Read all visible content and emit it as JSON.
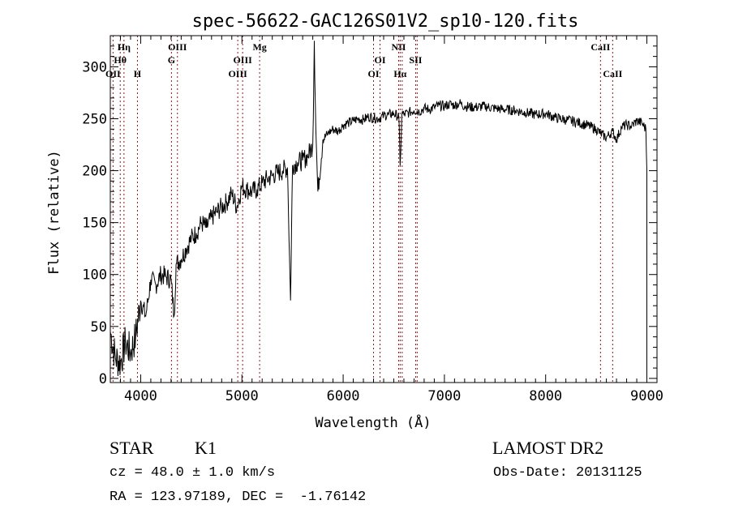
{
  "chart_data": {
    "type": "line",
    "title": "spec-56622-GAC126S01V2_sp10-120.fits",
    "xlabel": "Wavelength (Å)",
    "ylabel": "Flux (relative)",
    "xlim": [
      3700,
      9100
    ],
    "ylim": [
      -4,
      330
    ],
    "xticks": [
      4000,
      5000,
      6000,
      7000,
      8000,
      9000
    ],
    "yticks": [
      0,
      50,
      100,
      150,
      200,
      250,
      300
    ],
    "grid": false,
    "line_color": "#000000",
    "marker_color": "#8b1a1a",
    "line_markers": [
      {
        "label": "OII",
        "x": 3727,
        "row": 3
      },
      {
        "label": "Hθ",
        "x": 3798,
        "row": 2
      },
      {
        "label": "Hη",
        "x": 3835,
        "row": 1
      },
      {
        "label": "H",
        "x": 3968,
        "row": 3
      },
      {
        "label": "G",
        "x": 4304,
        "row": 2
      },
      {
        "label": "OIII",
        "x": 4363,
        "row": 1
      },
      {
        "label": "OIII",
        "x": 4959,
        "row": 3
      },
      {
        "label": "OIII",
        "x": 5007,
        "row": 2
      },
      {
        "label": "Mg",
        "x": 5175,
        "row": 1
      },
      {
        "label": "OI",
        "x": 6300,
        "row": 3
      },
      {
        "label": "OI",
        "x": 6364,
        "row": 2
      },
      {
        "label": "NII",
        "x": 6548,
        "row": 1
      },
      {
        "label": "Hα",
        "x": 6563,
        "row": 3
      },
      {
        "label": "NII",
        "x": 6583,
        "row": 0
      },
      {
        "label": "SII",
        "x": 6716,
        "row": 2
      },
      {
        "label": "SII",
        "x": 6731,
        "row": 0
      },
      {
        "label": "CaII",
        "x": 8542,
        "row": 1
      },
      {
        "label": "CaII",
        "x": 8662,
        "row": 3
      }
    ],
    "series": [
      {
        "name": "flux",
        "x": [
          3700,
          3750,
          3800,
          3850,
          3900,
          3950,
          4000,
          4050,
          4100,
          4150,
          4200,
          4250,
          4300,
          4330,
          4350,
          4400,
          4450,
          4500,
          4550,
          4600,
          4650,
          4700,
          4750,
          4800,
          4850,
          4900,
          4950,
          5000,
          5050,
          5100,
          5150,
          5200,
          5250,
          5300,
          5350,
          5400,
          5450,
          5480,
          5500,
          5550,
          5600,
          5650,
          5700,
          5715,
          5730,
          5750,
          5800,
          5850,
          5900,
          5950,
          6000,
          6050,
          6100,
          6150,
          6200,
          6250,
          6300,
          6350,
          6400,
          6450,
          6500,
          6550,
          6563,
          6580,
          6600,
          6650,
          6700,
          6750,
          6800,
          6850,
          6900,
          6950,
          7000,
          7050,
          7100,
          7150,
          7200,
          7300,
          7400,
          7500,
          7600,
          7700,
          7800,
          7900,
          8000,
          8100,
          8200,
          8300,
          8400,
          8500,
          8540,
          8600,
          8660,
          8700,
          8750,
          8800,
          8850,
          8900,
          8950,
          8990,
          9000
        ],
        "y": [
          45,
          20,
          15,
          35,
          25,
          40,
          75,
          60,
          95,
          90,
          100,
          98,
          95,
          60,
          110,
          115,
          125,
          135,
          140,
          150,
          145,
          155,
          160,
          165,
          170,
          178,
          165,
          185,
          182,
          180,
          182,
          188,
          192,
          195,
          198,
          200,
          203,
          75,
          205,
          208,
          210,
          214,
          225,
          325,
          240,
          180,
          230,
          236,
          240,
          238,
          244,
          246,
          248,
          250,
          249,
          252,
          251,
          250,
          253,
          254,
          255,
          252,
          205,
          255,
          254,
          256,
          258,
          257,
          260,
          259,
          261,
          263,
          262,
          264,
          263,
          265,
          262,
          261,
          262,
          260,
          259,
          258,
          256,
          254,
          255,
          251,
          249,
          247,
          244,
          240,
          236,
          232,
          238,
          230,
          242,
          244,
          243,
          248,
          246,
          240,
          200
        ]
      }
    ]
  },
  "footer": {
    "object_class": "STAR",
    "subclass": "K1",
    "survey": "LAMOST DR2",
    "cz": "cz = 48.0 ± 1.0 km/s",
    "obs_date": "Obs-Date: 20131125",
    "coords": "RA = 123.97189, DEC =  -1.76142"
  }
}
